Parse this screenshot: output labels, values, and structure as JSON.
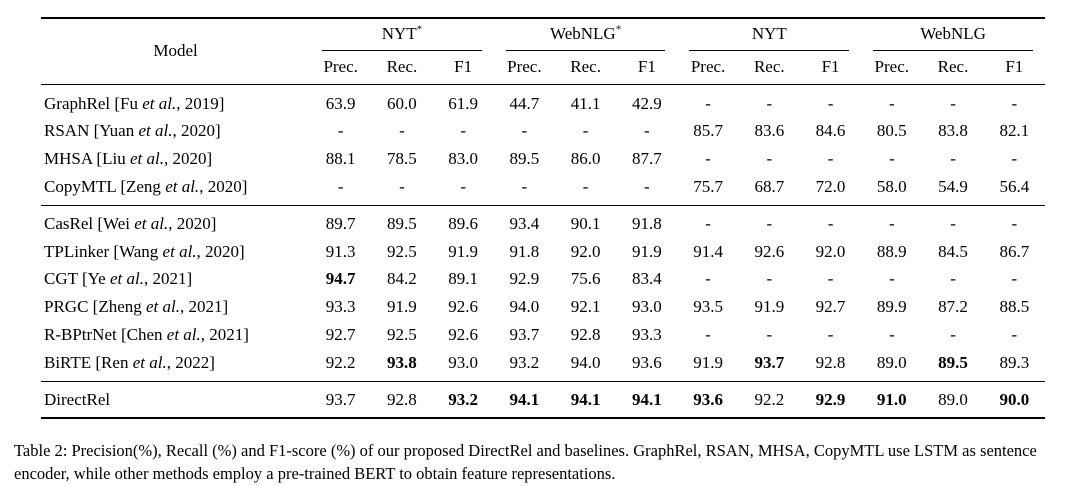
{
  "table": {
    "model_header": "Model",
    "groups": [
      {
        "label": "NYT",
        "mark": "*"
      },
      {
        "label": "WebNLG",
        "mark": "*"
      },
      {
        "label": "NYT",
        "mark": ""
      },
      {
        "label": "WebNLG",
        "mark": ""
      }
    ],
    "subheaders": [
      "Prec.",
      "Rec.",
      "F1"
    ],
    "sections": [
      {
        "rows": [
          {
            "model": {
              "pre": "GraphRel [Fu ",
              "it": "et al.",
              "post": ", 2019]"
            },
            "values": [
              "63.9",
              "60.0",
              "61.9",
              "44.7",
              "41.1",
              "42.9",
              "-",
              "-",
              "-",
              "-",
              "-",
              "-"
            ],
            "bold": []
          },
          {
            "model": {
              "pre": "RSAN [Yuan ",
              "it": "et al.",
              "post": ", 2020]"
            },
            "values": [
              "-",
              "-",
              "-",
              "-",
              "-",
              "-",
              "85.7",
              "83.6",
              "84.6",
              "80.5",
              "83.8",
              "82.1"
            ],
            "bold": []
          },
          {
            "model": {
              "pre": "MHSA [Liu ",
              "it": "et al.",
              "post": ", 2020]"
            },
            "values": [
              "88.1",
              "78.5",
              "83.0",
              "89.5",
              "86.0",
              "87.7",
              "-",
              "-",
              "-",
              "-",
              "-",
              "-"
            ],
            "bold": []
          },
          {
            "model": {
              "pre": "CopyMTL [Zeng ",
              "it": "et al.",
              "post": ", 2020]"
            },
            "values": [
              "-",
              "-",
              "-",
              "-",
              "-",
              "-",
              "75.7",
              "68.7",
              "72.0",
              "58.0",
              "54.9",
              "56.4"
            ],
            "bold": []
          }
        ]
      },
      {
        "rows": [
          {
            "model": {
              "pre": "CasRel [Wei ",
              "it": "et al.",
              "post": ", 2020]"
            },
            "values": [
              "89.7",
              "89.5",
              "89.6",
              "93.4",
              "90.1",
              "91.8",
              "-",
              "-",
              "-",
              "-",
              "-",
              "-"
            ],
            "bold": []
          },
          {
            "model": {
              "pre": "TPLinker [Wang ",
              "it": "et al.",
              "post": ", 2020]"
            },
            "values": [
              "91.3",
              "92.5",
              "91.9",
              "91.8",
              "92.0",
              "91.9",
              "91.4",
              "92.6",
              "92.0",
              "88.9",
              "84.5",
              "86.7"
            ],
            "bold": []
          },
          {
            "model": {
              "pre": "CGT [Ye ",
              "it": "et al.",
              "post": ", 2021]"
            },
            "values": [
              "94.7",
              "84.2",
              "89.1",
              "92.9",
              "75.6",
              "83.4",
              "-",
              "-",
              "-",
              "-",
              "-",
              "-"
            ],
            "bold": [
              0
            ]
          },
          {
            "model": {
              "pre": "PRGC [Zheng ",
              "it": "et al.",
              "post": ", 2021]"
            },
            "values": [
              "93.3",
              "91.9",
              "92.6",
              "94.0",
              "92.1",
              "93.0",
              "93.5",
              "91.9",
              "92.7",
              "89.9",
              "87.2",
              "88.5"
            ],
            "bold": []
          },
          {
            "model": {
              "pre": "R-BPtrNet [Chen ",
              "it": "et al.",
              "post": ", 2021]"
            },
            "values": [
              "92.7",
              "92.5",
              "92.6",
              "93.7",
              "92.8",
              "93.3",
              "-",
              "-",
              "-",
              "-",
              "-",
              "-"
            ],
            "bold": []
          },
          {
            "model": {
              "pre": "BiRTE [Ren ",
              "it": "et al.",
              "post": ", 2022]"
            },
            "values": [
              "92.2",
              "93.8",
              "93.0",
              "93.2",
              "94.0",
              "93.6",
              "91.9",
              "93.7",
              "92.8",
              "89.0",
              "89.5",
              "89.3"
            ],
            "bold": [
              1,
              7,
              10
            ]
          }
        ]
      },
      {
        "rows": [
          {
            "model": {
              "pre": "DirectRel",
              "it": "",
              "post": ""
            },
            "values": [
              "93.7",
              "92.8",
              "93.2",
              "94.1",
              "94.1",
              "94.1",
              "93.6",
              "92.2",
              "92.9",
              "91.0",
              "89.0",
              "90.0"
            ],
            "bold": [
              2,
              3,
              4,
              5,
              6,
              8,
              9,
              11
            ]
          }
        ]
      }
    ]
  },
  "caption": {
    "text": "Table 2: Precision(%), Recall (%) and F1-score (%) of our proposed DirectRel and baselines. GraphRel, RSAN, MHSA, CopyMTL use LSTM as sentence encoder, while other methods employ a pre-trained BERT to obtain feature representations."
  }
}
